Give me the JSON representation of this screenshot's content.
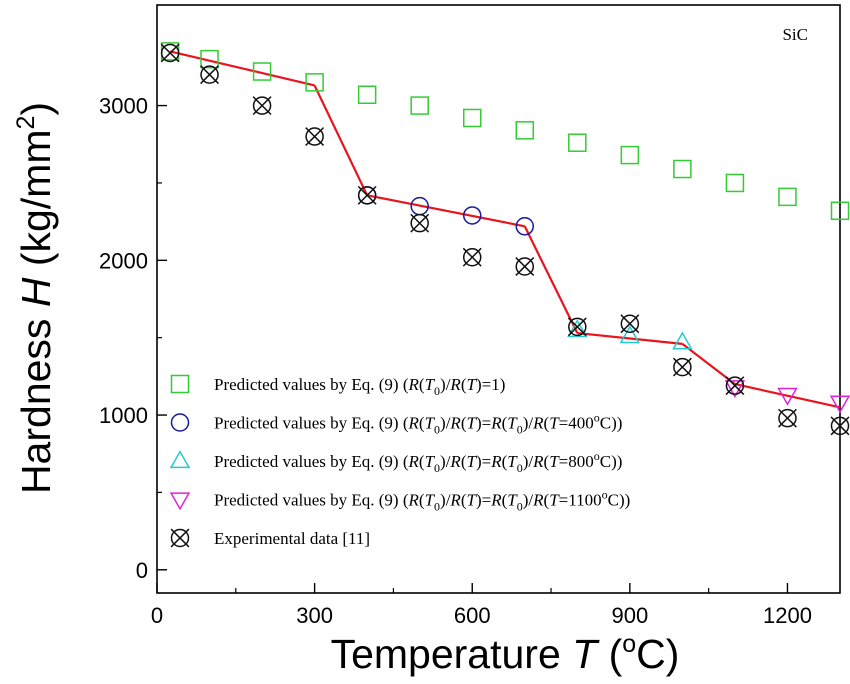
{
  "chart_data": {
    "type": "scatter",
    "annotation": "SiC",
    "xlabel": {
      "prefix": "Temperature ",
      "var": "T",
      "unit_open": " (",
      "unit_sup": "o",
      "unit_rest": "C)"
    },
    "ylabel": {
      "prefix": "Hardness ",
      "var": "H",
      "unit_open": " (kg/mm",
      "unit_sup": "2",
      "unit_close": ")"
    },
    "xlim": [
      0,
      1300
    ],
    "ylim": [
      -150,
      3650
    ],
    "xticks": [
      0,
      300,
      600,
      900,
      1200
    ],
    "yticks": [
      0,
      1000,
      2000,
      3000
    ],
    "legend_position": "bottom-left",
    "series": [
      {
        "marker": "square-open",
        "color": "#33cc33",
        "label": {
          "pre": "Predicted values by Eq. (9) (",
          "parts": [
            [
              "i",
              "R"
            ],
            [
              "t",
              "("
            ],
            [
              "i",
              "T"
            ],
            [
              "sub",
              "0"
            ],
            [
              "t",
              ")/"
            ],
            [
              "i",
              "R"
            ],
            [
              "t",
              "("
            ],
            [
              "i",
              "T"
            ],
            [
              "t",
              ")=1)"
            ]
          ]
        },
        "x": [
          25,
          100,
          200,
          300,
          400,
          500,
          600,
          700,
          800,
          900,
          1000,
          1100,
          1200,
          1300
        ],
        "y": [
          3350,
          3300,
          3220,
          3150,
          3070,
          3000,
          2920,
          2840,
          2760,
          2680,
          2590,
          2500,
          2410,
          2320
        ]
      },
      {
        "marker": "circle-open",
        "color": "#1a1aa0",
        "label": {
          "pre": "Predicted values by Eq. (9) (",
          "parts": [
            [
              "i",
              "R"
            ],
            [
              "t",
              "("
            ],
            [
              "i",
              "T"
            ],
            [
              "sub",
              "0"
            ],
            [
              "t",
              ")/"
            ],
            [
              "i",
              "R"
            ],
            [
              "t",
              "("
            ],
            [
              "i",
              "T"
            ],
            [
              "t",
              ")="
            ],
            [
              "i",
              "R"
            ],
            [
              "t",
              "("
            ],
            [
              "i",
              "T"
            ],
            [
              "sub",
              "0"
            ],
            [
              "t",
              ")/"
            ],
            [
              "i",
              "R"
            ],
            [
              "t",
              "("
            ],
            [
              "i",
              "T"
            ],
            [
              "t",
              "=400"
            ],
            [
              "sup",
              "o"
            ],
            [
              "t",
              "C))"
            ]
          ]
        },
        "x": [
          400,
          500,
          600,
          700
        ],
        "y": [
          2420,
          2350,
          2290,
          2220
        ]
      },
      {
        "marker": "triangle-up-open",
        "color": "#22cccc",
        "label": {
          "pre": "Predicted values by Eq. (9) (",
          "parts": [
            [
              "i",
              "R"
            ],
            [
              "t",
              "("
            ],
            [
              "i",
              "T"
            ],
            [
              "sub",
              "0"
            ],
            [
              "t",
              ")/"
            ],
            [
              "i",
              "R"
            ],
            [
              "t",
              "("
            ],
            [
              "i",
              "T"
            ],
            [
              "t",
              ")="
            ],
            [
              "i",
              "R"
            ],
            [
              "t",
              "("
            ],
            [
              "i",
              "T"
            ],
            [
              "sub",
              "0"
            ],
            [
              "t",
              ")/"
            ],
            [
              "i",
              "R"
            ],
            [
              "t",
              "("
            ],
            [
              "i",
              "T"
            ],
            [
              "t",
              "=800"
            ],
            [
              "sup",
              "o"
            ],
            [
              "t",
              "C))"
            ]
          ]
        },
        "x": [
          800,
          900,
          1000
        ],
        "y": [
          1550,
          1510,
          1470
        ]
      },
      {
        "marker": "triangle-down-open",
        "color": "#dd22dd",
        "label": {
          "pre": "Predicted values by Eq. (9) (",
          "parts": [
            [
              "i",
              "R"
            ],
            [
              "t",
              "("
            ],
            [
              "i",
              "T"
            ],
            [
              "sub",
              "0"
            ],
            [
              "t",
              ")/"
            ],
            [
              "i",
              "R"
            ],
            [
              "t",
              "("
            ],
            [
              "i",
              "T"
            ],
            [
              "t",
              ")="
            ],
            [
              "i",
              "R"
            ],
            [
              "t",
              "("
            ],
            [
              "i",
              "T"
            ],
            [
              "sub",
              "0"
            ],
            [
              "t",
              ")/"
            ],
            [
              "i",
              "R"
            ],
            [
              "t",
              "("
            ],
            [
              "i",
              "T"
            ],
            [
              "t",
              "=1100"
            ],
            [
              "sup",
              "o"
            ],
            [
              "t",
              "C))"
            ]
          ]
        },
        "x": [
          1100,
          1200,
          1300
        ],
        "y": [
          1180,
          1130,
          1080
        ]
      },
      {
        "marker": "circle-x-open",
        "color": "#111111",
        "label": {
          "pre": "Experimental data [11]",
          "parts": []
        },
        "x": [
          25,
          100,
          200,
          300,
          400,
          500,
          600,
          700,
          800,
          900,
          1000,
          1100,
          1200,
          1300
        ],
        "y": [
          3340,
          3200,
          3000,
          2800,
          2420,
          2240,
          2020,
          1960,
          1570,
          1590,
          1310,
          1190,
          980,
          930
        ]
      }
    ],
    "fit_line": {
      "color": "#e8141e",
      "segments": [
        {
          "x": [
            25,
            300
          ],
          "y": [
            3350,
            3130
          ]
        },
        {
          "x": [
            300,
            400
          ],
          "y": [
            3130,
            2420
          ]
        },
        {
          "x": [
            400,
            700
          ],
          "y": [
            2420,
            2220
          ]
        },
        {
          "x": [
            700,
            800
          ],
          "y": [
            2220,
            1530
          ]
        },
        {
          "x": [
            800,
            1000
          ],
          "y": [
            1530,
            1460
          ]
        },
        {
          "x": [
            1000,
            1100
          ],
          "y": [
            1460,
            1200
          ]
        },
        {
          "x": [
            1100,
            1300
          ],
          "y": [
            1200,
            1050
          ]
        }
      ]
    }
  }
}
